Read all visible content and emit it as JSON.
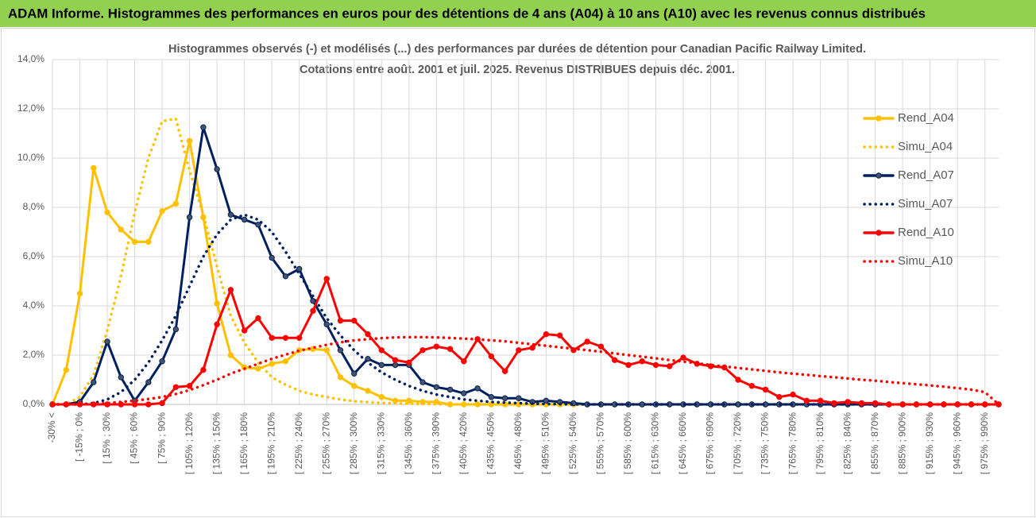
{
  "header": {
    "title": "ADAM Informe. Histogrammes des performances en euros pour des détentions de 4 ans (A04) à 10 ans (A10) avec les revenus connus distribués"
  },
  "chart_data": {
    "type": "line",
    "title": "Histogrammes observés (-) et modélisés (...) des performances par durées de détention pour Canadian Pacific Railway Limited.",
    "subtitle": "Cotations entre août. 2001 et juil. 2025. Revenus DISTRIBUES depuis déc. 2001.",
    "categories": [
      "-30% <",
      null,
      "[ -15% ; 0%",
      null,
      "[ 15% ; 30%",
      null,
      "[ 45% ; 60%",
      null,
      "[ 75% ; 90%",
      null,
      "[ 105% ; 120%",
      null,
      "[ 135% ; 150%",
      null,
      "[ 165% ; 180%",
      null,
      "[ 195% ; 210%",
      null,
      "[ 225% ; 240%",
      null,
      "[ 255% ; 270%",
      null,
      "[ 285% ; 300%",
      null,
      "[ 315% ; 330%",
      null,
      "[ 345% ; 360%",
      null,
      "[ 375% ; 390%",
      null,
      "[ 405% ; 420%",
      null,
      "[ 435% ; 450%",
      null,
      "[ 465% ; 480%",
      null,
      "[ 495% ; 510%",
      null,
      "[ 525% ; 540%",
      null,
      "[ 555% ; 570%",
      null,
      "[ 585% ; 600%",
      null,
      "[ 615% ; 630%",
      null,
      "[ 645% ; 660%",
      null,
      "[ 675% ; 690%",
      null,
      "[ 705% ; 720%",
      null,
      "[ 735% ; 750%",
      null,
      "[ 765% ; 780%",
      null,
      "[ 795% ; 810%",
      null,
      "[ 825% ; 840%",
      null,
      "[ 855% ; 870%",
      null,
      "[ 885% ; 900%",
      null,
      "[ 915% ; 930%",
      null,
      "[ 945% ; 960%",
      null,
      "[ 975% ; 990%",
      null
    ],
    "ylim": [
      0,
      14
    ],
    "yticks": [
      {
        "value": 0,
        "label": "0,0%"
      },
      {
        "value": 2,
        "label": "2,0%"
      },
      {
        "value": 4,
        "label": "4,0%"
      },
      {
        "value": 6,
        "label": "6,0%"
      },
      {
        "value": 8,
        "label": "8,0%"
      },
      {
        "value": 10,
        "label": "10,0%"
      },
      {
        "value": 12,
        "label": "12,0%"
      },
      {
        "value": 14,
        "label": "14,0%"
      }
    ],
    "grid": true,
    "legend": "right",
    "series": [
      {
        "name": "Rend_A04",
        "color": "#ffc000",
        "style": "solid",
        "markers": true,
        "values": [
          0,
          1.4,
          4.5,
          9.6,
          7.8,
          7.1,
          6.6,
          6.6,
          7.85,
          8.15,
          10.7,
          7.6,
          4.1,
          2.0,
          1.5,
          1.45,
          1.65,
          1.75,
          2.2,
          2.25,
          2.2,
          1.1,
          0.75,
          0.55,
          0.3,
          0.15,
          0.15,
          0.1,
          0.1,
          0,
          0,
          0,
          0,
          0,
          0,
          0,
          0,
          0,
          0,
          0,
          0,
          0,
          0,
          0,
          0,
          0,
          0,
          0,
          0,
          0,
          0,
          0,
          0,
          0,
          0,
          0,
          0,
          0,
          0,
          0,
          0,
          0,
          0,
          0,
          0,
          0,
          0,
          0,
          0,
          0
        ]
      },
      {
        "name": "Simu_A04",
        "color": "#ffc000",
        "style": "dotted",
        "markers": false,
        "values": [
          0,
          0,
          0.3,
          1.2,
          3.0,
          5.2,
          7.8,
          10.0,
          11.5,
          11.6,
          9.5,
          7.7,
          5.6,
          3.6,
          2.5,
          1.7,
          1.1,
          0.8,
          0.55,
          0.4,
          0.3,
          0.2,
          0.13,
          0.09,
          0.06,
          0.04,
          0.03,
          0.02,
          0.01,
          0,
          0,
          0,
          0,
          0,
          0,
          0,
          0,
          0,
          0,
          0,
          0,
          0,
          0,
          0,
          0,
          0,
          0,
          0,
          0,
          0,
          0,
          0,
          0,
          0,
          0,
          0,
          0,
          0,
          0,
          0,
          0,
          0,
          0,
          0,
          0,
          0,
          0,
          0,
          0,
          0
        ]
      },
      {
        "name": "Rend_A07",
        "color": "#002060",
        "style": "solid",
        "markers": true,
        "values": [
          0,
          0,
          0.1,
          0.9,
          2.55,
          1.1,
          0.15,
          0.9,
          1.75,
          3.05,
          7.6,
          11.25,
          9.55,
          7.7,
          7.5,
          7.3,
          5.95,
          5.2,
          5.5,
          4.2,
          3.25,
          2.2,
          1.25,
          1.85,
          1.6,
          1.6,
          1.6,
          0.9,
          0.7,
          0.6,
          0.45,
          0.65,
          0.3,
          0.25,
          0.25,
          0.1,
          0.15,
          0.1,
          0.05,
          0,
          0,
          0,
          0,
          0,
          0,
          0,
          0,
          0,
          0,
          0,
          0,
          0,
          0,
          0,
          0,
          0,
          0,
          0,
          0,
          0,
          0,
          0,
          0,
          0,
          0,
          0,
          0,
          0,
          0,
          0
        ]
      },
      {
        "name": "Simu_A07",
        "color": "#002060",
        "style": "dotted",
        "markers": false,
        "values": [
          0,
          0,
          0,
          0.05,
          0.2,
          0.5,
          1.0,
          1.7,
          2.6,
          3.6,
          4.8,
          6.0,
          6.9,
          7.5,
          7.7,
          7.5,
          7.0,
          6.2,
          5.3,
          4.4,
          3.5,
          2.8,
          2.2,
          1.7,
          1.3,
          1.0,
          0.75,
          0.55,
          0.4,
          0.3,
          0.2,
          0.15,
          0.1,
          0.07,
          0.05,
          0.03,
          0.02,
          0.01,
          0,
          0,
          0,
          0,
          0,
          0,
          0,
          0,
          0,
          0,
          0,
          0,
          0,
          0,
          0,
          0,
          0,
          0,
          0,
          0,
          0,
          0,
          0,
          0,
          0,
          0,
          0,
          0,
          0,
          0,
          0,
          0
        ]
      },
      {
        "name": "Rend_A10",
        "color": "#ff0000",
        "style": "solid",
        "markers": true,
        "values": [
          0,
          0,
          0,
          0,
          0,
          0,
          0,
          0,
          0.05,
          0.7,
          0.75,
          1.4,
          3.25,
          4.65,
          3.0,
          3.5,
          2.7,
          2.7,
          2.7,
          3.8,
          5.1,
          3.4,
          3.4,
          2.85,
          2.2,
          1.8,
          1.7,
          2.2,
          2.35,
          2.25,
          1.75,
          2.65,
          1.95,
          1.35,
          2.2,
          2.3,
          2.85,
          2.8,
          2.2,
          2.55,
          2.35,
          1.8,
          1.6,
          1.75,
          1.6,
          1.55,
          1.9,
          1.65,
          1.55,
          1.5,
          1.0,
          0.75,
          0.6,
          0.3,
          0.4,
          0.15,
          0.15,
          0.05,
          0.1,
          0.05,
          0.05,
          0,
          0,
          0,
          0,
          0,
          0,
          0,
          0,
          0
        ]
      },
      {
        "name": "Simu_A10",
        "color": "#ff0000",
        "style": "dotted",
        "markers": false,
        "values": [
          0,
          0,
          0,
          0.02,
          0.05,
          0.1,
          0.15,
          0.22,
          0.3,
          0.42,
          0.58,
          0.78,
          1.0,
          1.25,
          1.45,
          1.65,
          1.85,
          2.02,
          2.18,
          2.3,
          2.42,
          2.52,
          2.6,
          2.65,
          2.69,
          2.72,
          2.73,
          2.73,
          2.72,
          2.7,
          2.67,
          2.64,
          2.6,
          2.56,
          2.5,
          2.44,
          2.38,
          2.32,
          2.26,
          2.2,
          2.14,
          2.07,
          2.0,
          1.94,
          1.87,
          1.8,
          1.74,
          1.67,
          1.6,
          1.54,
          1.48,
          1.42,
          1.36,
          1.3,
          1.25,
          1.2,
          1.15,
          1.1,
          1.05,
          1.0,
          0.96,
          0.91,
          0.86,
          0.82,
          0.77,
          0.72,
          0.66,
          0.6,
          0.5,
          0.0
        ]
      }
    ]
  }
}
